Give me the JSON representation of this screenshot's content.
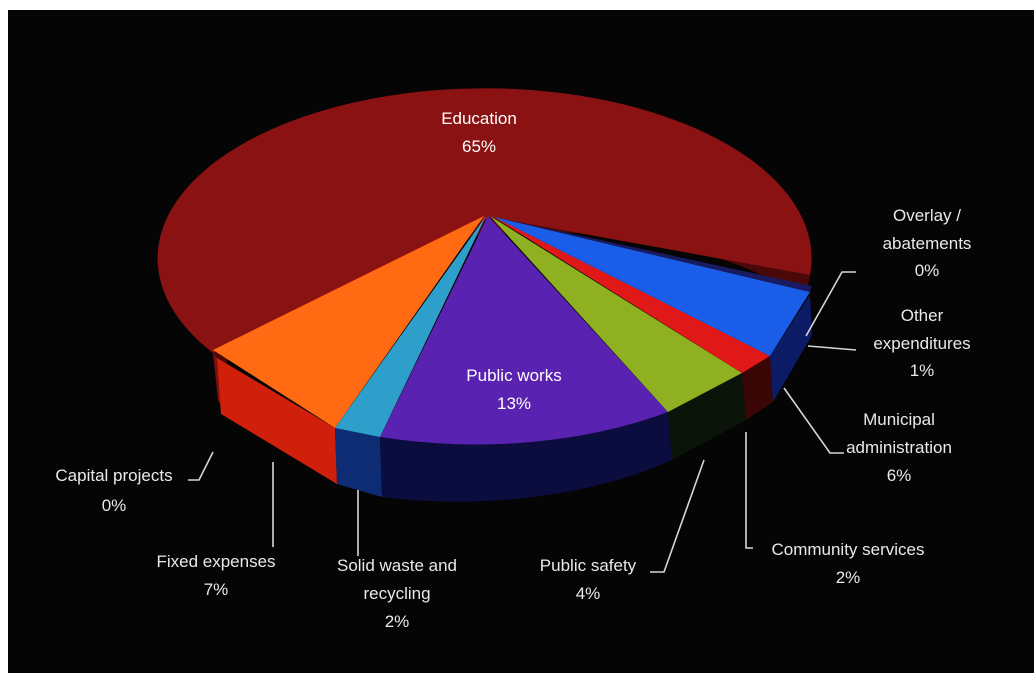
{
  "chart_data": {
    "type": "pie",
    "style": "3d-exploded",
    "slices": [
      {
        "label": "Education",
        "value": 65,
        "value_label": "65%",
        "color": "#8b1212"
      },
      {
        "label": "Overlay / abatements",
        "value": 0,
        "value_label": "0%",
        "color": "#1a1a60"
      },
      {
        "label": "Municipal administration",
        "value": 6,
        "value_label": "6%",
        "color": "#1a5de8"
      },
      {
        "label": "Other expenditures",
        "value": 1,
        "value_label": "1%",
        "color": "#e01818"
      },
      {
        "label": "Community services",
        "value": 2,
        "value_label": "2%",
        "color": "#e01818"
      },
      {
        "label": "Public safety",
        "value": 4,
        "value_label": "4%",
        "color": "#8fb020"
      },
      {
        "label": "Public works",
        "value": 13,
        "value_label": "13%",
        "color": "#5a22b0"
      },
      {
        "label": "Solid waste and recycling",
        "value": 2,
        "value_label": "2%",
        "color": "#2e9ecb"
      },
      {
        "label": "Fixed expenses",
        "value": 7,
        "value_label": "7%",
        "color": "#ff6a12"
      },
      {
        "label": "Capital projects",
        "value": 0,
        "value_label": "0%",
        "color": "#e03a1a"
      }
    ],
    "labels": {
      "education": {
        "name": "Education",
        "value": "65%"
      },
      "public_works": {
        "name": "Public works",
        "value": "13%"
      },
      "overlay": {
        "line1": "Overlay /",
        "line2": "abatements",
        "value": "0%"
      },
      "other": {
        "line1": "Other",
        "line2": "expenditures",
        "value": "1%"
      },
      "municipal": {
        "line1": "Municipal",
        "line2": "administration",
        "value": "6%"
      },
      "community": {
        "name": "Community services",
        "value": "2%"
      },
      "public_safety": {
        "name": "Public safety",
        "value": "4%"
      },
      "solid_waste": {
        "line1": "Solid waste and",
        "line2": "recycling",
        "value": "2%"
      },
      "fixed": {
        "name": "Fixed expenses",
        "value": "7%"
      },
      "capital": {
        "name": "Capital projects",
        "value": "0%"
      }
    }
  }
}
